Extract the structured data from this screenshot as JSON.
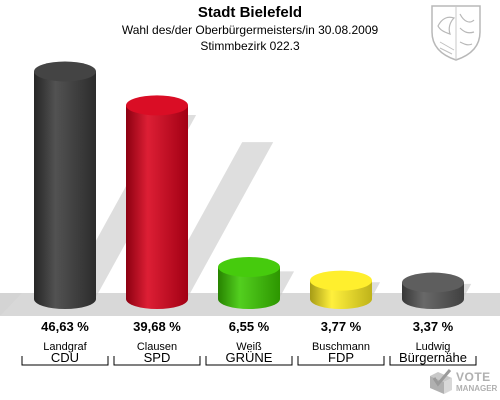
{
  "header": {
    "title": "Stadt Bielefeld",
    "subtitle": "Wahl des/der Oberbürgermeisters/in 30.08.2009",
    "subtitle2": "Stimmbezirk 022.3"
  },
  "logo": {
    "name": "VOTE",
    "sub": "MANAGER"
  },
  "colors": {
    "CDU": "#3a3a3a",
    "SPD": "#e0001a",
    "GRÜNE": "#3cc800",
    "FDP": "#ffee22",
    "Bürgernähe": "#555555"
  },
  "chart_data": {
    "type": "bar",
    "title": "Stadt Bielefeld",
    "categories": [
      "Landgraf",
      "Clausen",
      "Weiß",
      "Buschmann",
      "Ludwig"
    ],
    "parties": [
      "CDU",
      "SPD",
      "GRÜNE",
      "FDP",
      "Bürgernähe"
    ],
    "values": [
      46.63,
      39.68,
      6.55,
      3.77,
      3.37
    ],
    "value_labels": [
      "46,63 %",
      "39,68 %",
      "6,55 %",
      "3,77 %",
      "3,37 %"
    ],
    "bar_colors": [
      "#3a3a3a",
      "#d8001a",
      "#3cc800",
      "#ffee22",
      "#555555"
    ],
    "ylim": [
      0,
      50
    ],
    "grid": false,
    "legend": "none"
  }
}
